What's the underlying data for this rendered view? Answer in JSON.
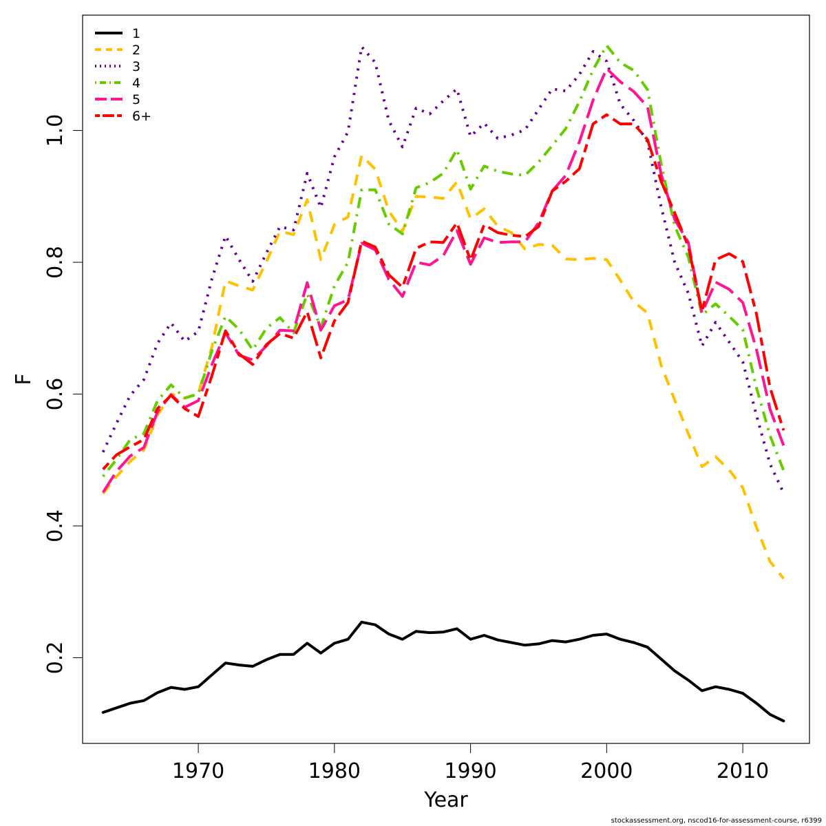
{
  "chart_data": {
    "type": "line",
    "xlabel": "Year",
    "ylabel": "F",
    "xlim": [
      1961.5,
      2014.9
    ],
    "ylim": [
      0.07,
      1.175
    ],
    "x_ticks": [
      1970,
      1980,
      1990,
      2000,
      2010
    ],
    "y_ticks": [
      0.2,
      0.4,
      0.6,
      0.8,
      1.0
    ],
    "y_tick_labels": [
      "0.2",
      "0.4",
      "0.6",
      "0.8",
      "1.0"
    ],
    "grid": false,
    "legend_position": "top-left",
    "x": [
      1963,
      1964,
      1965,
      1966,
      1967,
      1968,
      1969,
      1970,
      1971,
      1972,
      1973,
      1974,
      1975,
      1976,
      1977,
      1978,
      1979,
      1980,
      1981,
      1982,
      1983,
      1984,
      1985,
      1986,
      1987,
      1988,
      1989,
      1990,
      1991,
      1992,
      1993,
      1994,
      1995,
      1996,
      1997,
      1998,
      1999,
      2000,
      2001,
      2002,
      2003,
      2004,
      2005,
      2006,
      2007,
      2008,
      2009,
      2010,
      2011,
      2012,
      2013
    ],
    "series": [
      {
        "name": "1",
        "color": "#000000",
        "dash": "solid",
        "values": [
          0.117,
          0.124,
          0.131,
          0.135,
          0.147,
          0.155,
          0.152,
          0.156,
          0.174,
          0.192,
          0.189,
          0.187,
          0.197,
          0.205,
          0.205,
          0.222,
          0.207,
          0.222,
          0.228,
          0.254,
          0.25,
          0.236,
          0.228,
          0.24,
          0.238,
          0.239,
          0.244,
          0.228,
          0.234,
          0.227,
          0.223,
          0.219,
          0.221,
          0.226,
          0.224,
          0.228,
          0.234,
          0.236,
          0.228,
          0.223,
          0.216,
          0.198,
          0.18,
          0.166,
          0.15,
          0.156,
          0.152,
          0.146,
          0.131,
          0.114,
          0.104
        ]
      },
      {
        "name": "2",
        "color": "#ffc000",
        "dash": "dashed",
        "values": [
          0.449,
          0.475,
          0.498,
          0.515,
          0.568,
          0.6,
          0.594,
          0.601,
          0.672,
          0.772,
          0.764,
          0.758,
          0.801,
          0.847,
          0.842,
          0.895,
          0.804,
          0.857,
          0.869,
          0.962,
          0.941,
          0.878,
          0.847,
          0.9,
          0.899,
          0.897,
          0.922,
          0.866,
          0.881,
          0.855,
          0.845,
          0.82,
          0.827,
          0.826,
          0.805,
          0.804,
          0.806,
          0.804,
          0.773,
          0.74,
          0.723,
          0.644,
          0.591,
          0.54,
          0.49,
          0.505,
          0.485,
          0.458,
          0.398,
          0.346,
          0.32
        ]
      },
      {
        "name": "3",
        "color": "#660099",
        "dash": "dotted",
        "values": [
          0.512,
          0.556,
          0.598,
          0.622,
          0.677,
          0.708,
          0.68,
          0.695,
          0.775,
          0.84,
          0.804,
          0.771,
          0.814,
          0.854,
          0.849,
          0.935,
          0.883,
          0.96,
          0.998,
          1.127,
          1.103,
          1.015,
          0.975,
          1.034,
          1.025,
          1.045,
          1.063,
          0.991,
          1.011,
          0.988,
          0.993,
          1.001,
          1.032,
          1.063,
          1.06,
          1.085,
          1.12,
          1.105,
          1.04,
          1.015,
          0.983,
          0.885,
          0.8,
          0.753,
          0.673,
          0.709,
          0.679,
          0.649,
          0.568,
          0.494,
          0.45
        ]
      },
      {
        "name": "4",
        "color": "#66cc00",
        "dash": "dotdash",
        "values": [
          0.475,
          0.501,
          0.531,
          0.54,
          0.59,
          0.614,
          0.594,
          0.6,
          0.666,
          0.718,
          0.698,
          0.667,
          0.7,
          0.716,
          0.693,
          0.752,
          0.701,
          0.764,
          0.8,
          0.91,
          0.91,
          0.858,
          0.843,
          0.913,
          0.921,
          0.935,
          0.971,
          0.911,
          0.946,
          0.938,
          0.934,
          0.932,
          0.952,
          0.977,
          1.003,
          1.044,
          1.092,
          1.129,
          1.103,
          1.091,
          1.062,
          0.95,
          0.855,
          0.808,
          0.72,
          0.737,
          0.718,
          0.698,
          0.61,
          0.537,
          0.484
        ]
      },
      {
        "name": "5",
        "color": "#ff1493",
        "dash": "longdash",
        "values": [
          0.451,
          0.483,
          0.506,
          0.519,
          0.573,
          0.599,
          0.58,
          0.59,
          0.645,
          0.693,
          0.659,
          0.652,
          0.673,
          0.697,
          0.696,
          0.769,
          0.697,
          0.734,
          0.743,
          0.829,
          0.819,
          0.774,
          0.748,
          0.8,
          0.796,
          0.81,
          0.848,
          0.797,
          0.837,
          0.83,
          0.831,
          0.831,
          0.86,
          0.908,
          0.932,
          0.983,
          1.046,
          1.094,
          1.074,
          1.059,
          1.036,
          0.934,
          0.865,
          0.83,
          0.723,
          0.77,
          0.759,
          0.739,
          0.668,
          0.577,
          0.522
        ]
      },
      {
        "name": "6+",
        "color": "#ff0000",
        "dash": "twodash",
        "values": [
          0.486,
          0.508,
          0.52,
          0.531,
          0.578,
          0.598,
          0.578,
          0.566,
          0.628,
          0.696,
          0.661,
          0.645,
          0.675,
          0.692,
          0.685,
          0.725,
          0.655,
          0.711,
          0.739,
          0.832,
          0.823,
          0.781,
          0.762,
          0.821,
          0.831,
          0.83,
          0.86,
          0.803,
          0.857,
          0.845,
          0.841,
          0.839,
          0.854,
          0.908,
          0.923,
          0.942,
          1.01,
          1.024,
          1.01,
          1.01,
          0.986,
          0.923,
          0.875,
          0.824,
          0.726,
          0.804,
          0.813,
          0.801,
          0.722,
          0.61,
          0.545
        ]
      }
    ]
  },
  "footnote": "stockassessment.org, nscod16-for-assessment-course, r6399"
}
